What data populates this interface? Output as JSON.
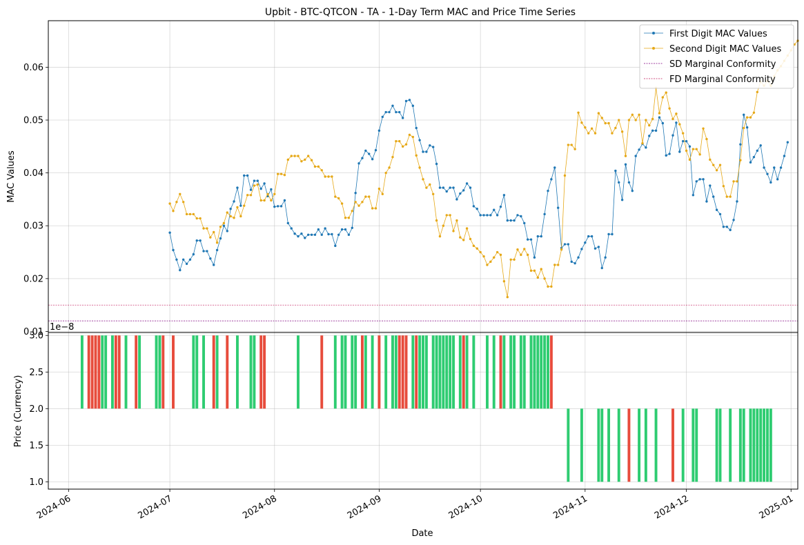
{
  "figure": {
    "title": "Upbit - BTC-QTCON - TA - 1-Day Term MAC and Price Time Series",
    "top_ylabel": "MAC Values",
    "bottom_ylabel": "Price (Currency)",
    "xlabel": "Date",
    "offset_text": "1e−8"
  },
  "chart_data": [
    {
      "type": "line",
      "panel": "top",
      "title": "Upbit - BTC-QTCON - TA - 1-Day Term MAC and Price Time Series",
      "ylabel": "MAC Values",
      "ylim": [
        0.0098,
        0.0688
      ],
      "yticks": [
        0.01,
        0.02,
        0.03,
        0.04,
        0.05,
        0.06
      ],
      "ytick_labels": [
        "0.01",
        "0.02",
        "0.03",
        "0.04",
        "0.05",
        "0.06"
      ],
      "xlim": [
        "2024-05-26",
        "2025-01-03"
      ],
      "grid": true,
      "legend_position": "top-right",
      "series": [
        {
          "name": "First Digit MAC Values",
          "color": "#1f77b4",
          "marker": "circle",
          "start": "2024-07-01",
          "values": [
            0.0287,
            0.0254,
            0.0236,
            0.0216,
            0.0236,
            0.0228,
            0.0236,
            0.0246,
            0.0272,
            0.0272,
            0.0252,
            0.0252,
            0.0238,
            0.0226,
            0.0254,
            0.0276,
            0.03,
            0.029,
            0.0332,
            0.0346,
            0.0372,
            0.0338,
            0.0395,
            0.0395,
            0.0368,
            0.0385,
            0.0385,
            0.037,
            0.038,
            0.0356,
            0.0369,
            0.0336,
            0.0337,
            0.0337,
            0.0348,
            0.0305,
            0.0295,
            0.0285,
            0.028,
            0.0285,
            0.0277,
            0.0283,
            0.0283,
            0.0283,
            0.0293,
            0.0283,
            0.0295,
            0.0284,
            0.0284,
            0.0262,
            0.0283,
            0.0293,
            0.0293,
            0.0283,
            0.0296,
            0.0362,
            0.0418,
            0.0428,
            0.0442,
            0.0436,
            0.0426,
            0.0443,
            0.048,
            0.0506,
            0.0515,
            0.0515,
            0.0527,
            0.0515,
            0.0515,
            0.0504,
            0.0536,
            0.0538,
            0.0527,
            0.0485,
            0.0462,
            0.044,
            0.044,
            0.0452,
            0.0449,
            0.0417,
            0.0372,
            0.0372,
            0.0365,
            0.0372,
            0.0372,
            0.035,
            0.0361,
            0.0367,
            0.038,
            0.0372,
            0.0337,
            0.0332,
            0.032,
            0.032,
            0.032,
            0.032,
            0.033,
            0.032,
            0.0336,
            0.0358,
            0.031,
            0.031,
            0.031,
            0.032,
            0.0318,
            0.0305,
            0.0274,
            0.0274,
            0.024,
            0.028,
            0.028,
            0.0322,
            0.0366,
            0.0388,
            0.041,
            0.0334,
            0.0258,
            0.0265,
            0.0265,
            0.0232,
            0.0229,
            0.024,
            0.0256,
            0.0268,
            0.028,
            0.028,
            0.0257,
            0.026,
            0.022,
            0.024,
            0.0284,
            0.0284,
            0.0404,
            0.0382,
            0.0349,
            0.0416,
            0.0382,
            0.0366,
            0.0432,
            0.0444,
            0.0455,
            0.0448,
            0.047,
            0.048,
            0.048,
            0.0505,
            0.0494,
            0.0433,
            0.0436,
            0.0471,
            0.0495,
            0.044,
            0.046,
            0.046,
            0.045,
            0.0358,
            0.0384,
            0.0388,
            0.0388,
            0.0346,
            0.0376,
            0.0355,
            0.033,
            0.0322,
            0.0298,
            0.0298,
            0.0292,
            0.0311,
            0.0346,
            0.0454,
            0.051,
            0.0486,
            0.042,
            0.043,
            0.0442,
            0.0452,
            0.041,
            0.0398,
            0.0382,
            0.041,
            0.0388,
            0.041,
            0.0432,
            0.0458
          ]
        },
        {
          "name": "Second Digit MAC Values",
          "color": "#e6a817",
          "marker": "circle",
          "start": "2024-07-01",
          "values": [
            0.0342,
            0.0328,
            0.0345,
            0.036,
            0.0345,
            0.0322,
            0.0322,
            0.0322,
            0.0314,
            0.0314,
            0.0295,
            0.0295,
            0.0278,
            0.0288,
            0.0268,
            0.0298,
            0.0305,
            0.0325,
            0.0318,
            0.0315,
            0.0335,
            0.0318,
            0.0338,
            0.0358,
            0.0358,
            0.0376,
            0.0378,
            0.0348,
            0.0348,
            0.036,
            0.0348,
            0.036,
            0.0398,
            0.0398,
            0.0396,
            0.0425,
            0.0432,
            0.0432,
            0.0432,
            0.0422,
            0.0425,
            0.0432,
            0.0424,
            0.0412,
            0.0412,
            0.0405,
            0.0393,
            0.0393,
            0.0393,
            0.0355,
            0.0352,
            0.0342,
            0.0315,
            0.0315,
            0.0328,
            0.0345,
            0.0338,
            0.0345,
            0.0355,
            0.0355,
            0.0333,
            0.0333,
            0.037,
            0.036,
            0.04,
            0.041,
            0.043,
            0.046,
            0.046,
            0.045,
            0.0454,
            0.0472,
            0.0468,
            0.0433,
            0.041,
            0.0388,
            0.0372,
            0.0378,
            0.036,
            0.031,
            0.028,
            0.03,
            0.032,
            0.032,
            0.029,
            0.031,
            0.0278,
            0.0273,
            0.0295,
            0.0275,
            0.0262,
            0.0257,
            0.025,
            0.0242,
            0.0226,
            0.0232,
            0.024,
            0.025,
            0.0245,
            0.0195,
            0.0165,
            0.0236,
            0.0236,
            0.0255,
            0.0245,
            0.0256,
            0.0245,
            0.0215,
            0.0215,
            0.0202,
            0.0218,
            0.02,
            0.0185,
            0.0185,
            0.0226,
            0.0226,
            0.0255,
            0.0395,
            0.0453,
            0.0453,
            0.0445,
            0.0514,
            0.0495,
            0.0486,
            0.0475,
            0.0484,
            0.0475,
            0.0513,
            0.0504,
            0.0494,
            0.0494,
            0.0475,
            0.0485,
            0.05,
            0.0478,
            0.0432,
            0.05,
            0.051,
            0.05,
            0.051,
            0.0456,
            0.05,
            0.049,
            0.0502,
            0.0561,
            0.0513,
            0.0543,
            0.0552,
            0.0522,
            0.0502,
            0.0512,
            0.0492,
            0.0475,
            0.0442,
            0.0425,
            0.0445,
            0.0445,
            0.0435,
            0.0484,
            0.0464,
            0.0425,
            0.0415,
            0.0405,
            0.0415,
            0.0375,
            0.0355,
            0.0355,
            0.0384,
            0.0384,
            0.0424,
            0.0485,
            0.0505,
            0.0505,
            0.0514,
            0.0553,
            0.0573,
            0.0565,
            0.0574,
            0.0565,
            0.0583,
            0.0594,
            0.0602,
            0.0612,
            0.0622,
            0.0632,
            0.0643,
            0.065
          ]
        },
        {
          "name": "SD Marginal Conformity",
          "color": "#800080",
          "style": "dashed",
          "value": 0.012
        },
        {
          "name": "FD Marginal Conformity",
          "color": "#c2185b",
          "style": "dashed",
          "value": 0.015
        }
      ]
    },
    {
      "type": "bar",
      "panel": "bottom",
      "ylabel": "Price (Currency)",
      "xlabel": "Date",
      "ylim": [
        0.9,
        3.04
      ],
      "yticks": [
        1.0,
        1.5,
        2.0,
        2.5,
        3.0
      ],
      "ytick_labels": [
        "1.0",
        "1.5",
        "2.0",
        "2.5",
        "3.0"
      ],
      "offset_text": "1e−8",
      "scale": 1e-08,
      "xlim": [
        "2024-05-26",
        "2025-01-03"
      ],
      "xticks": [
        "2024-06-01",
        "2024-07-01",
        "2024-08-01",
        "2024-09-01",
        "2024-10-01",
        "2024-11-01",
        "2024-12-01",
        "2025-01-01"
      ],
      "xtick_labels": [
        "2024-06",
        "2024-07",
        "2024-08",
        "2024-09",
        "2024-10",
        "2024-11",
        "2024-12",
        "2025-01"
      ],
      "grid": true,
      "up_color": "#2ecc71",
      "down_color": "#e74c3c",
      "candles": [
        {
          "date": "2024-06-05",
          "open": 2,
          "close": 3
        },
        {
          "date": "2024-06-07",
          "open": 3,
          "close": 2
        },
        {
          "date": "2024-06-08",
          "open": 3,
          "close": 2
        },
        {
          "date": "2024-06-09",
          "open": 3,
          "close": 2
        },
        {
          "date": "2024-06-10",
          "open": 3,
          "close": 2
        },
        {
          "date": "2024-06-11",
          "open": 2,
          "close": 3
        },
        {
          "date": "2024-06-12",
          "open": 2,
          "close": 3
        },
        {
          "date": "2024-06-14",
          "open": 2,
          "close": 3
        },
        {
          "date": "2024-06-15",
          "open": 3,
          "close": 2
        },
        {
          "date": "2024-06-16",
          "open": 3,
          "close": 2
        },
        {
          "date": "2024-06-18",
          "open": 2,
          "close": 3
        },
        {
          "date": "2024-06-21",
          "open": 3,
          "close": 2
        },
        {
          "date": "2024-06-22",
          "open": 2,
          "close": 3
        },
        {
          "date": "2024-06-27",
          "open": 2,
          "close": 3
        },
        {
          "date": "2024-06-28",
          "open": 2,
          "close": 3
        },
        {
          "date": "2024-06-29",
          "open": 3,
          "close": 2
        },
        {
          "date": "2024-07-02",
          "open": 3,
          "close": 2
        },
        {
          "date": "2024-07-08",
          "open": 2,
          "close": 3
        },
        {
          "date": "2024-07-09",
          "open": 2,
          "close": 3
        },
        {
          "date": "2024-07-11",
          "open": 2,
          "close": 3
        },
        {
          "date": "2024-07-14",
          "open": 3,
          "close": 2
        },
        {
          "date": "2024-07-15",
          "open": 2,
          "close": 3
        },
        {
          "date": "2024-07-18",
          "open": 3,
          "close": 2
        },
        {
          "date": "2024-07-21",
          "open": 2,
          "close": 3
        },
        {
          "date": "2024-07-25",
          "open": 2,
          "close": 3
        },
        {
          "date": "2024-07-26",
          "open": 2,
          "close": 3
        },
        {
          "date": "2024-07-28",
          "open": 3,
          "close": 2
        },
        {
          "date": "2024-07-29",
          "open": 3,
          "close": 2
        },
        {
          "date": "2024-08-08",
          "open": 2,
          "close": 3
        },
        {
          "date": "2024-08-15",
          "open": 3,
          "close": 2
        },
        {
          "date": "2024-08-19",
          "open": 2,
          "close": 3
        },
        {
          "date": "2024-08-21",
          "open": 2,
          "close": 3
        },
        {
          "date": "2024-08-22",
          "open": 2,
          "close": 3
        },
        {
          "date": "2024-08-24",
          "open": 2,
          "close": 3
        },
        {
          "date": "2024-08-25",
          "open": 2,
          "close": 3
        },
        {
          "date": "2024-08-27",
          "open": 3,
          "close": 2
        },
        {
          "date": "2024-08-28",
          "open": 2,
          "close": 3
        },
        {
          "date": "2024-08-30",
          "open": 2,
          "close": 3
        },
        {
          "date": "2024-09-01",
          "open": 3,
          "close": 2
        },
        {
          "date": "2024-09-03",
          "open": 2,
          "close": 3
        },
        {
          "date": "2024-09-05",
          "open": 2,
          "close": 3
        },
        {
          "date": "2024-09-06",
          "open": 2,
          "close": 3
        },
        {
          "date": "2024-09-07",
          "open": 3,
          "close": 2
        },
        {
          "date": "2024-09-08",
          "open": 3,
          "close": 2
        },
        {
          "date": "2024-09-09",
          "open": 3,
          "close": 2
        },
        {
          "date": "2024-09-11",
          "open": 2,
          "close": 3
        },
        {
          "date": "2024-09-12",
          "open": 3,
          "close": 2
        },
        {
          "date": "2024-09-13",
          "open": 2,
          "close": 3
        },
        {
          "date": "2024-09-14",
          "open": 2,
          "close": 3
        },
        {
          "date": "2024-09-15",
          "open": 2,
          "close": 3
        },
        {
          "date": "2024-09-17",
          "open": 2,
          "close": 3
        },
        {
          "date": "2024-09-18",
          "open": 2,
          "close": 3
        },
        {
          "date": "2024-09-19",
          "open": 2,
          "close": 3
        },
        {
          "date": "2024-09-20",
          "open": 2,
          "close": 3
        },
        {
          "date": "2024-09-21",
          "open": 2,
          "close": 3
        },
        {
          "date": "2024-09-22",
          "open": 2,
          "close": 3
        },
        {
          "date": "2024-09-23",
          "open": 2,
          "close": 3
        },
        {
          "date": "2024-09-25",
          "open": 2,
          "close": 3
        },
        {
          "date": "2024-09-26",
          "open": 3,
          "close": 2
        },
        {
          "date": "2024-09-27",
          "open": 2,
          "close": 3
        },
        {
          "date": "2024-09-29",
          "open": 2,
          "close": 3
        },
        {
          "date": "2024-10-03",
          "open": 2,
          "close": 3
        },
        {
          "date": "2024-10-05",
          "open": 2,
          "close": 3
        },
        {
          "date": "2024-10-07",
          "open": 3,
          "close": 2
        },
        {
          "date": "2024-10-08",
          "open": 2,
          "close": 3
        },
        {
          "date": "2024-10-10",
          "open": 2,
          "close": 3
        },
        {
          "date": "2024-10-11",
          "open": 2,
          "close": 3
        },
        {
          "date": "2024-10-13",
          "open": 2,
          "close": 3
        },
        {
          "date": "2024-10-14",
          "open": 2,
          "close": 3
        },
        {
          "date": "2024-10-16",
          "open": 2,
          "close": 3
        },
        {
          "date": "2024-10-17",
          "open": 2,
          "close": 3
        },
        {
          "date": "2024-10-18",
          "open": 2,
          "close": 3
        },
        {
          "date": "2024-10-19",
          "open": 2,
          "close": 3
        },
        {
          "date": "2024-10-20",
          "open": 2,
          "close": 3
        },
        {
          "date": "2024-10-21",
          "open": 2,
          "close": 3
        },
        {
          "date": "2024-10-22",
          "open": 3,
          "close": 2
        },
        {
          "date": "2024-10-27",
          "open": 1,
          "close": 2
        },
        {
          "date": "2024-10-31",
          "open": 1,
          "close": 2
        },
        {
          "date": "2024-11-05",
          "open": 1,
          "close": 2
        },
        {
          "date": "2024-11-06",
          "open": 1,
          "close": 2
        },
        {
          "date": "2024-11-08",
          "open": 1,
          "close": 2
        },
        {
          "date": "2024-11-11",
          "open": 1,
          "close": 2
        },
        {
          "date": "2024-11-14",
          "open": 2,
          "close": 1
        },
        {
          "date": "2024-11-17",
          "open": 1,
          "close": 2
        },
        {
          "date": "2024-11-19",
          "open": 1,
          "close": 2
        },
        {
          "date": "2024-11-22",
          "open": 1,
          "close": 2
        },
        {
          "date": "2024-11-27",
          "open": 2,
          "close": 1
        },
        {
          "date": "2024-11-30",
          "open": 1,
          "close": 2
        },
        {
          "date": "2024-12-03",
          "open": 1,
          "close": 2
        },
        {
          "date": "2024-12-04",
          "open": 1,
          "close": 2
        },
        {
          "date": "2024-12-10",
          "open": 1,
          "close": 2
        },
        {
          "date": "2024-12-11",
          "open": 1,
          "close": 2
        },
        {
          "date": "2024-12-14",
          "open": 1,
          "close": 2
        },
        {
          "date": "2024-12-17",
          "open": 1,
          "close": 2
        },
        {
          "date": "2024-12-18",
          "open": 1,
          "close": 2
        },
        {
          "date": "2024-12-20",
          "open": 1,
          "close": 2
        },
        {
          "date": "2024-12-21",
          "open": 1,
          "close": 2
        },
        {
          "date": "2024-12-22",
          "open": 1,
          "close": 2
        },
        {
          "date": "2024-12-23",
          "open": 1,
          "close": 2
        },
        {
          "date": "2024-12-24",
          "open": 1,
          "close": 2
        },
        {
          "date": "2024-12-25",
          "open": 1,
          "close": 2
        },
        {
          "date": "2024-12-26",
          "open": 1,
          "close": 2
        }
      ]
    }
  ]
}
